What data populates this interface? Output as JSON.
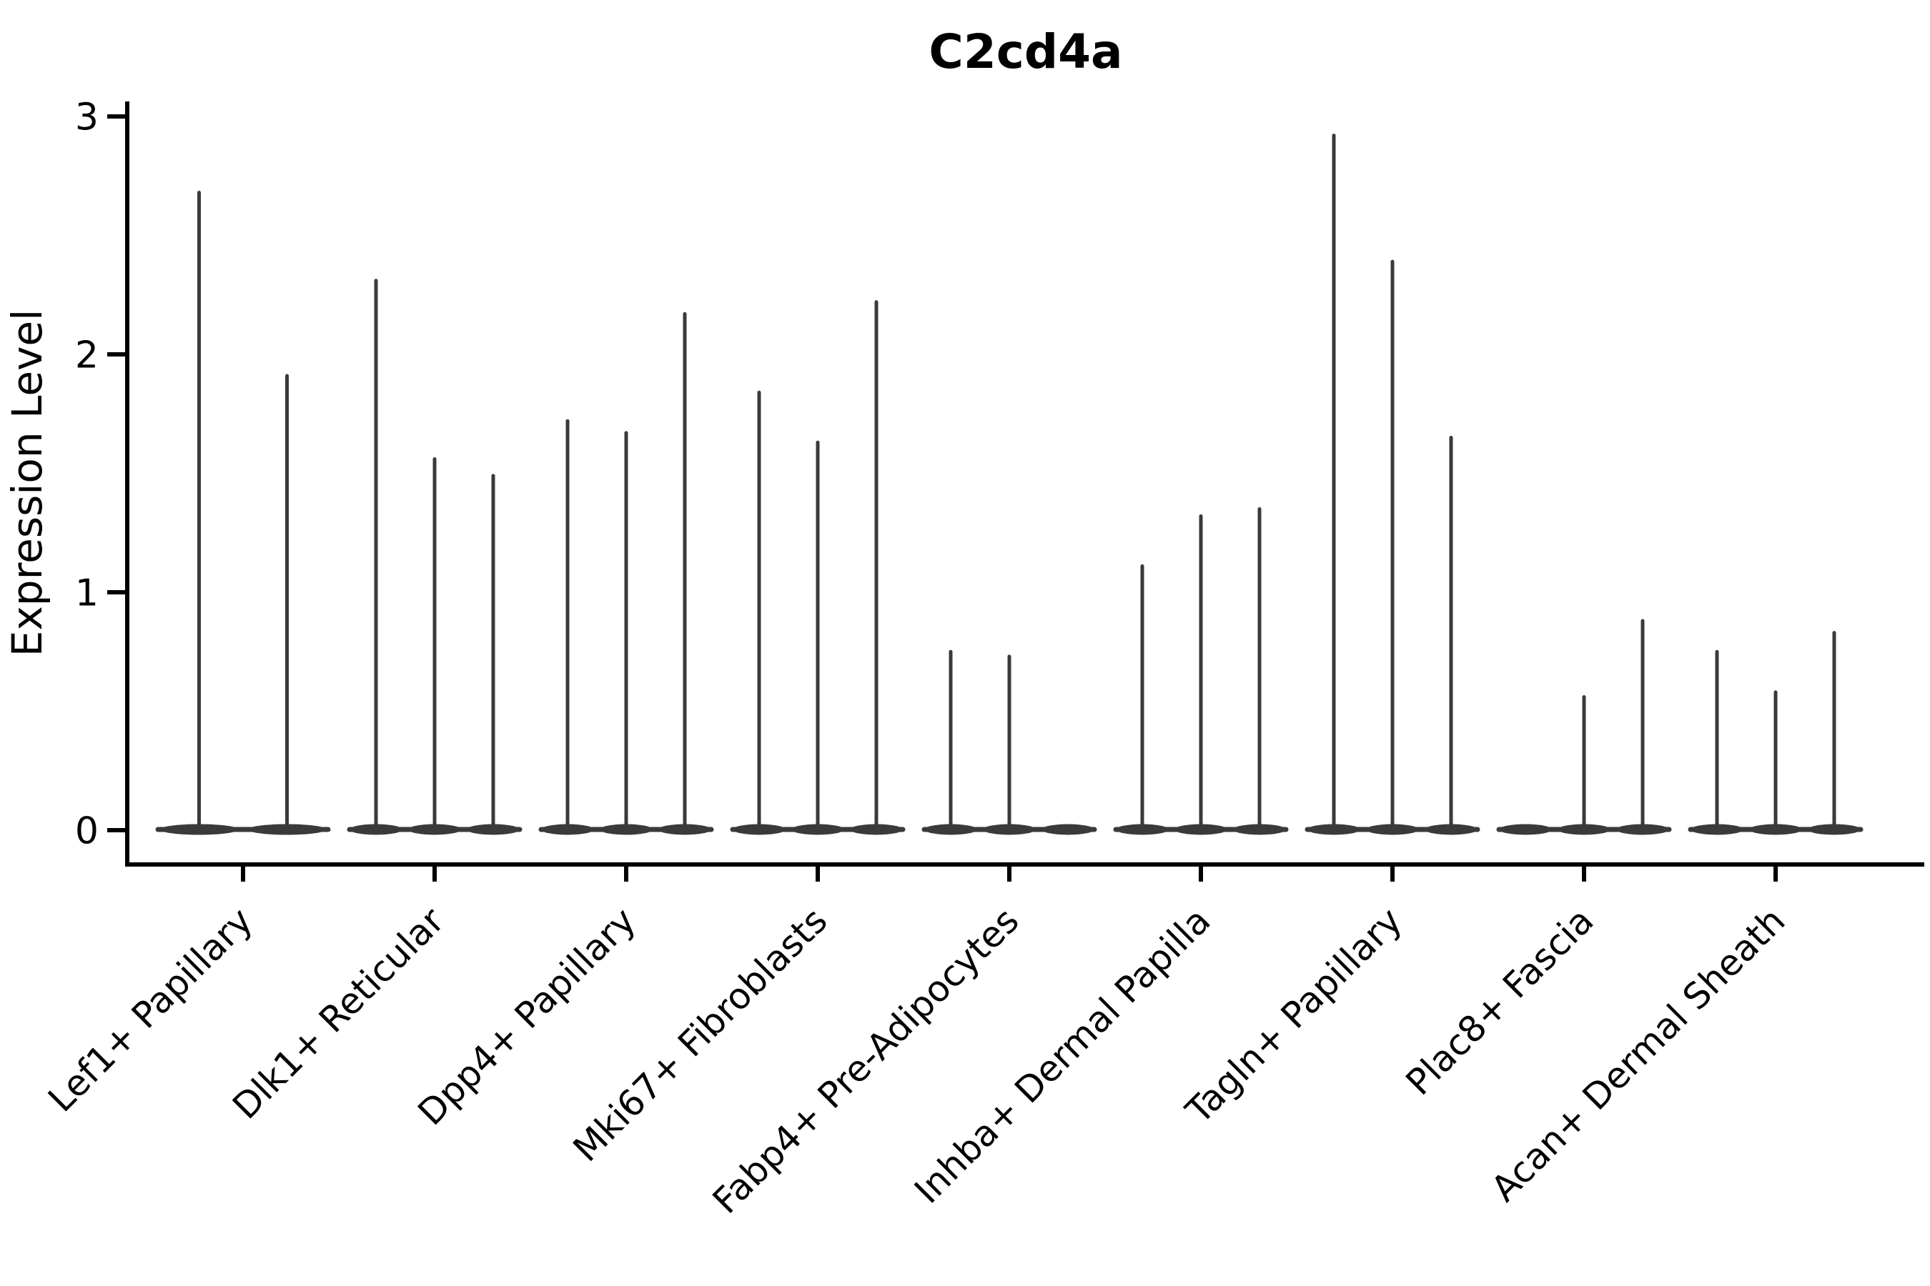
{
  "chart_data": {
    "type": "violin",
    "title": "C2cd4a",
    "xlabel": "",
    "ylabel": "Expression Level",
    "ylim": [
      -0.15,
      3.06
    ],
    "yticks": [
      0,
      1,
      2,
      3
    ],
    "grid": false,
    "legend": "none",
    "note": "Each category shows thin collapsed violins; values are the maximum expression (spike top) of each violin, left to right. 0 = fully flat violin at baseline.",
    "categories": [
      {
        "label": "Lef1+ Papillary",
        "violins": [
          2.68,
          1.91
        ]
      },
      {
        "label": "Dlk1+ Reticular",
        "violins": [
          2.31,
          1.56,
          1.49
        ]
      },
      {
        "label": "Dpp4+ Papillary",
        "violins": [
          1.72,
          1.67,
          2.17
        ]
      },
      {
        "label": "Mki67+ Fibroblasts",
        "violins": [
          1.84,
          1.63,
          2.22
        ]
      },
      {
        "label": "Fabp4+ Pre-Adipocytes",
        "violins": [
          0.75,
          0.73,
          0
        ]
      },
      {
        "label": "Inhba+ Dermal Papilla",
        "violins": [
          1.11,
          1.32,
          1.35
        ]
      },
      {
        "label": "Tagln+ Papillary",
        "violins": [
          2.92,
          2.39,
          1.65
        ]
      },
      {
        "label": "Plac8+ Fascia",
        "violins": [
          0,
          0.56,
          0.88
        ]
      },
      {
        "label": "Acan+ Dermal Sheath",
        "violins": [
          0.75,
          0.58,
          0.83
        ]
      }
    ],
    "colors": {
      "axis": "#000000",
      "violin": "#3a3a3a",
      "text": "#000000",
      "background": "#ffffff"
    }
  }
}
